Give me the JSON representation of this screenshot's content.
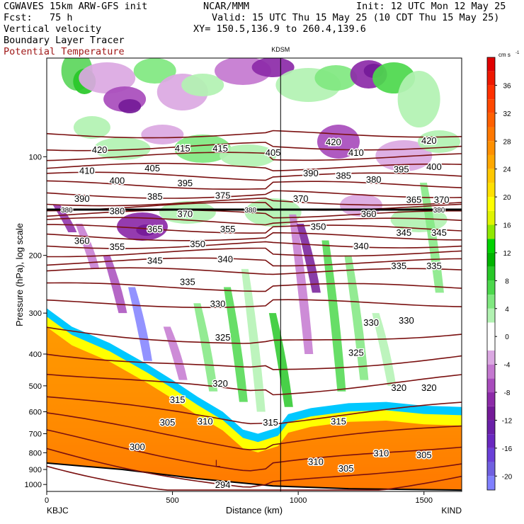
{
  "header": {
    "model": "CGWAVES 15km ARW-GFS init",
    "org": "NCAR/MMM",
    "init": "Init: 12 UTC Mon 12 May 25",
    "fcst": "Fcst:   75 h",
    "valid": "Valid: 15 UTC Thu 15 May 25 (10 CDT Thu 15 May 25)",
    "field1": "Vertical velocity",
    "field2": "Boundary Layer Tracer",
    "xy": "XY= 150.5,136.9 to 260.4,139.6",
    "field3": "Potential Temperature"
  },
  "colors": {
    "theta": "#7a1010",
    "text_red": "#a01818"
  },
  "chart_data": {
    "type": "heatmap",
    "title": "",
    "xlabel": "Distance (km)",
    "ylabel": "Pressure (hPa), log scale",
    "xlim": [
      0,
      1650
    ],
    "ylim": [
      1050,
      50
    ],
    "y_scale": "log",
    "x_ticks": [
      0,
      500,
      1000,
      1500
    ],
    "y_ticks": [
      100,
      200,
      300,
      400,
      500,
      600,
      700,
      800,
      900,
      1000
    ],
    "marker": {
      "label": "KDSM",
      "x": 930
    },
    "endpoints": {
      "left": "KBJC",
      "right": "KIND"
    },
    "colorbar": {
      "unit_label": "cm s",
      "unit_exp": "-1",
      "levels": [
        -22,
        -20,
        -18,
        -16,
        -14,
        -12,
        -10,
        -8,
        -6,
        -4,
        -2,
        0,
        2,
        4,
        6,
        8,
        10,
        12,
        14,
        16,
        18,
        20,
        22,
        24,
        26,
        28,
        30,
        32,
        34,
        36,
        38,
        40
      ],
      "colors": [
        "#8080ff",
        "#7060e0",
        "#6a40d8",
        "#6a28c0",
        "#6a20a8",
        "#741a98",
        "#8c2aa8",
        "#a84cbc",
        "#c478d0",
        "#dba8e2",
        "#ffffff",
        "#ffffff",
        "#b2f2b2",
        "#80e880",
        "#4cd84c",
        "#28c828",
        "#00b400",
        "#00d200",
        "#90e800",
        "#e0f400",
        "#ffff00",
        "#ffe000",
        "#ffc800",
        "#ffa800",
        "#ff9000",
        "#ff7800",
        "#ff6000",
        "#ff4800",
        "#ff3000",
        "#ee1800",
        "#e00000"
      ],
      "tick_labels": [
        "-20",
        "-16",
        "-12",
        "-8",
        "-4",
        "0",
        "4",
        "8",
        "12",
        "16",
        "20",
        "24",
        "28",
        "32",
        "36"
      ]
    },
    "series": [
      {
        "name": "Potential Temperature",
        "kind": "contour",
        "labels": [
          {
            "v": "420",
            "x": 210,
            "p": 95
          },
          {
            "v": "415",
            "x": 540,
            "p": 94
          },
          {
            "v": "415",
            "x": 690,
            "p": 94
          },
          {
            "v": "405",
            "x": 900,
            "p": 97
          },
          {
            "v": "420",
            "x": 1140,
            "p": 90
          },
          {
            "v": "410",
            "x": 1230,
            "p": 97
          },
          {
            "v": "420",
            "x": 1520,
            "p": 89
          },
          {
            "v": "410",
            "x": 160,
            "p": 110
          },
          {
            "v": "405",
            "x": 420,
            "p": 108
          },
          {
            "v": "390",
            "x": 1050,
            "p": 112
          },
          {
            "v": "385",
            "x": 1180,
            "p": 114
          },
          {
            "v": "380",
            "x": 1300,
            "p": 117
          },
          {
            "v": "395",
            "x": 1410,
            "p": 109
          },
          {
            "v": "400",
            "x": 1540,
            "p": 107
          },
          {
            "v": "400",
            "x": 280,
            "p": 118
          },
          {
            "v": "395",
            "x": 550,
            "p": 120
          },
          {
            "v": "390",
            "x": 140,
            "p": 134
          },
          {
            "v": "385",
            "x": 430,
            "p": 132
          },
          {
            "v": "375",
            "x": 700,
            "p": 131
          },
          {
            "v": "370",
            "x": 1010,
            "p": 134
          },
          {
            "v": "365",
            "x": 1460,
            "p": 135
          },
          {
            "v": "370",
            "x": 1570,
            "p": 135
          },
          {
            "v": "380",
            "x": 280,
            "p": 146
          },
          {
            "v": "370",
            "x": 550,
            "p": 149
          },
          {
            "v": "360",
            "x": 1280,
            "p": 149
          },
          {
            "v": "365",
            "x": 430,
            "p": 166
          },
          {
            "v": "355",
            "x": 720,
            "p": 166
          },
          {
            "v": "350",
            "x": 1080,
            "p": 163
          },
          {
            "v": "345",
            "x": 1420,
            "p": 170
          },
          {
            "v": "345",
            "x": 1560,
            "p": 170
          },
          {
            "v": "360",
            "x": 140,
            "p": 180
          },
          {
            "v": "355",
            "x": 280,
            "p": 188
          },
          {
            "v": "350",
            "x": 600,
            "p": 184
          },
          {
            "v": "340",
            "x": 1250,
            "p": 187
          },
          {
            "v": "340",
            "x": 710,
            "p": 205
          },
          {
            "v": "345",
            "x": 430,
            "p": 207
          },
          {
            "v": "335",
            "x": 1400,
            "p": 215
          },
          {
            "v": "335",
            "x": 1540,
            "p": 215
          },
          {
            "v": "335",
            "x": 560,
            "p": 240
          },
          {
            "v": "330",
            "x": 680,
            "p": 280
          },
          {
            "v": "330",
            "x": 1290,
            "p": 320
          },
          {
            "v": "330",
            "x": 1430,
            "p": 315
          },
          {
            "v": "325",
            "x": 700,
            "p": 355
          },
          {
            "v": "325",
            "x": 1230,
            "p": 395
          },
          {
            "v": "320",
            "x": 690,
            "p": 490
          },
          {
            "v": "320",
            "x": 1400,
            "p": 505
          },
          {
            "v": "320",
            "x": 1520,
            "p": 505
          },
          {
            "v": "315",
            "x": 520,
            "p": 550
          },
          {
            "v": "315",
            "x": 890,
            "p": 645
          },
          {
            "v": "315",
            "x": 1160,
            "p": 640
          },
          {
            "v": "310",
            "x": 630,
            "p": 640
          },
          {
            "v": "305",
            "x": 480,
            "p": 645
          },
          {
            "v": "300",
            "x": 360,
            "p": 765
          },
          {
            "v": "310",
            "x": 1070,
            "p": 850
          },
          {
            "v": "310",
            "x": 1330,
            "p": 800
          },
          {
            "v": "305",
            "x": 1500,
            "p": 810
          },
          {
            "v": "305",
            "x": 1190,
            "p": 890
          },
          {
            "v": "294",
            "x": 700,
            "p": 1000
          }
        ]
      }
    ],
    "tropopause_labels": [
      {
        "v": "380",
        "x": 80,
        "p": 145
      },
      {
        "v": "380",
        "x": 810,
        "p": 145
      },
      {
        "v": "380",
        "x": 1560,
        "p": 145
      }
    ],
    "low_label": {
      "v": "L",
      "x": 680,
      "p": 860
    }
  }
}
